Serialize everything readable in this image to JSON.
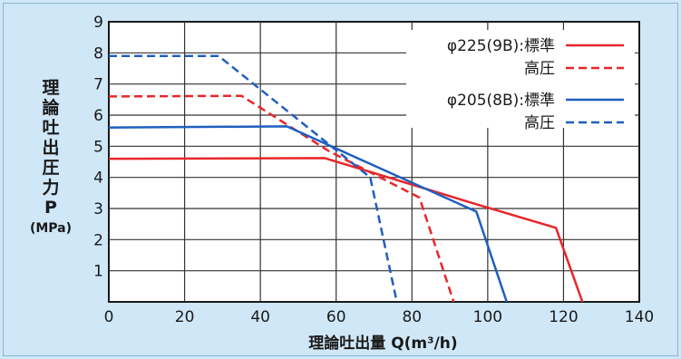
{
  "chart_data": {
    "type": "line",
    "title": "",
    "xlabel": "理論吐出量 Q(m³/h)",
    "ylabel_lines": [
      "理",
      "論",
      "吐",
      "出",
      "圧",
      "力",
      "P",
      "(MPa)"
    ],
    "xlim": [
      0,
      140
    ],
    "ylim": [
      0,
      9
    ],
    "x_ticks": [
      0,
      20,
      40,
      60,
      80,
      100,
      120,
      140
    ],
    "y_ticks": [
      1,
      2,
      3,
      4,
      5,
      6,
      7,
      8,
      9
    ],
    "grid": true,
    "legend_position": "top-right",
    "series": [
      {
        "name": "φ225(9B):標準",
        "color": "#e8262a",
        "dash": false,
        "points": [
          [
            0,
            4.6
          ],
          [
            57,
            4.62
          ],
          [
            98,
            3.1
          ],
          [
            118,
            2.38
          ],
          [
            125,
            0
          ]
        ]
      },
      {
        "name": "高圧",
        "color": "#e8262a",
        "dash": true,
        "points": [
          [
            0,
            6.6
          ],
          [
            35,
            6.62
          ],
          [
            58,
            4.85
          ],
          [
            82,
            3.35
          ],
          [
            91,
            0
          ]
        ]
      },
      {
        "name": "φ205(8B):標準",
        "color": "#1f5fbf",
        "dash": false,
        "points": [
          [
            0,
            5.6
          ],
          [
            47,
            5.64
          ],
          [
            97,
            2.9
          ],
          [
            105,
            0
          ]
        ]
      },
      {
        "name": "高圧",
        "color": "#1f5fbf",
        "dash": true,
        "points": [
          [
            0,
            7.9
          ],
          [
            29,
            7.9
          ],
          [
            69,
            4.0
          ],
          [
            76,
            0
          ]
        ]
      }
    ]
  }
}
